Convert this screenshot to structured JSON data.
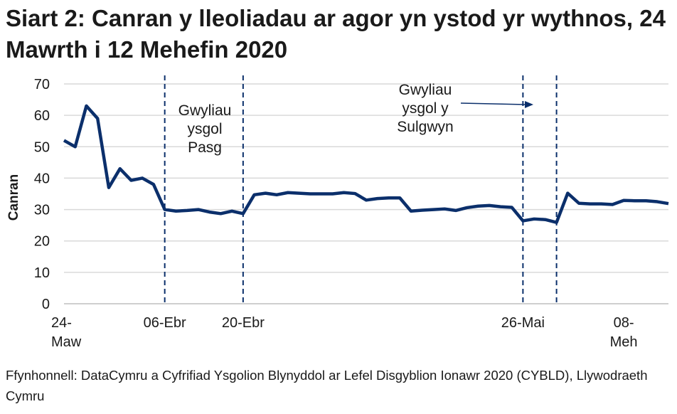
{
  "chart_data": {
    "type": "line",
    "title": "Siart 2: Canran y lleoliadau ar agor yn ystod yr wythnos, 24 Mawrth i 12 Mehefin 2020",
    "ylabel": "Canran",
    "xlabel": "",
    "ylim": [
      0,
      70
    ],
    "yticks": [
      0,
      10,
      20,
      30,
      40,
      50,
      60,
      70
    ],
    "grid": true,
    "x_ticks": [
      {
        "index": 0,
        "label": [
          "24-",
          "Maw"
        ]
      },
      {
        "index": 9,
        "label": [
          "06-Ebr"
        ]
      },
      {
        "index": 16,
        "label": [
          "20-Ebr"
        ]
      },
      {
        "index": 41,
        "label": [
          "26-Mai"
        ]
      },
      {
        "index": 50,
        "label": [
          "08-",
          "Meh"
        ]
      }
    ],
    "series": [
      {
        "color": "#0b2f6b",
        "values": [
          52,
          50,
          63,
          59,
          37,
          43,
          39.3,
          40,
          38,
          30,
          29.5,
          29.7,
          30,
          29.2,
          28.7,
          29.5,
          28.7,
          34.7,
          35.2,
          34.7,
          35.4,
          35.2,
          35,
          35,
          35,
          35.4,
          35.1,
          33,
          33.5,
          33.7,
          33.7,
          29.5,
          29.8,
          30,
          30.2,
          29.7,
          30.6,
          31.1,
          31.3,
          30.9,
          30.7,
          26.4,
          27,
          26.8,
          25.9,
          35.2,
          32,
          31.8,
          31.8,
          31.6,
          32.9,
          32.8,
          32.8,
          32.5,
          31.9
        ]
      }
    ],
    "vertical_lines": [
      9,
      16,
      41,
      44
    ],
    "annotations": [
      {
        "text": [
          "Gwyliau",
          "ysgol",
          "Pasg"
        ]
      },
      {
        "text": [
          "Gwyliau",
          "ysgol y",
          "Sulgwyn"
        ]
      }
    ],
    "source": "Ffynhonnell: DataCymru a Cyfrifiad Ysgolion Blynyddol ar Lefel Disgyblion Ionawr 2020 (CYBLD), Llywodraeth Cymru"
  }
}
